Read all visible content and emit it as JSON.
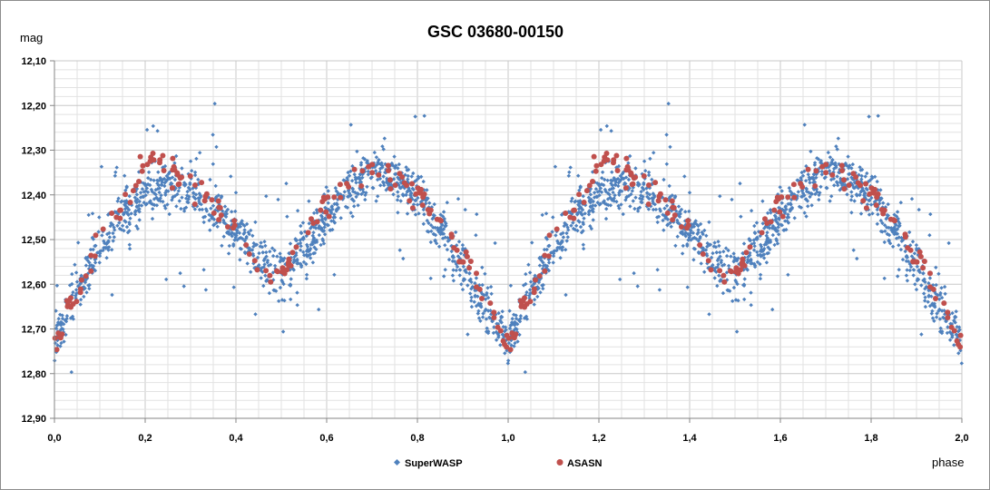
{
  "chart_data": {
    "type": "scatter",
    "title": "GSC 03680-00150",
    "ylabel": "mag",
    "xlabel": "phase",
    "xlim": [
      0.0,
      2.0
    ],
    "ylim": [
      12.1,
      12.9
    ],
    "y_inverted": true,
    "x_ticks": [
      "0,0",
      "0,2",
      "0,4",
      "0,6",
      "0,8",
      "1,0",
      "1,2",
      "1,4",
      "1,6",
      "1,8",
      "2,0"
    ],
    "y_ticks": [
      "12,10",
      "12,20",
      "12,30",
      "12,40",
      "12,50",
      "12,60",
      "12,70",
      "12,80",
      "12,90"
    ],
    "grid": true,
    "legend_position": "bottom",
    "series": [
      {
        "name": "SuperWASP",
        "color": "#4f81bd",
        "marker": "diamond",
        "mean_curve": {
          "phase": [
            0.0,
            0.05,
            0.1,
            0.15,
            0.2,
            0.25,
            0.3,
            0.35,
            0.4,
            0.45,
            0.5,
            0.55,
            0.6,
            0.65,
            0.7,
            0.75,
            0.8,
            0.85,
            0.9,
            0.95,
            1.0
          ],
          "mag": [
            12.72,
            12.62,
            12.52,
            12.45,
            12.4,
            12.38,
            12.4,
            12.43,
            12.48,
            12.54,
            12.58,
            12.52,
            12.45,
            12.39,
            12.35,
            12.36,
            12.4,
            12.48,
            12.57,
            12.66,
            12.72
          ]
        },
        "scatter_amplitude": 0.05,
        "points_per_cycle": 1300
      },
      {
        "name": "ASASN",
        "color": "#c0504d",
        "marker": "circle",
        "mean_curve": {
          "phase": [
            0.0,
            0.05,
            0.1,
            0.15,
            0.2,
            0.23,
            0.25,
            0.3,
            0.35,
            0.4,
            0.45,
            0.5,
            0.55,
            0.6,
            0.65,
            0.7,
            0.75,
            0.8,
            0.85,
            0.9,
            0.95,
            1.0
          ],
          "mag": [
            12.73,
            12.63,
            12.5,
            12.42,
            12.35,
            12.32,
            12.34,
            12.38,
            12.41,
            12.47,
            12.55,
            12.58,
            12.49,
            12.42,
            12.37,
            12.34,
            12.36,
            12.4,
            12.46,
            12.54,
            12.64,
            12.73
          ]
        },
        "scatter_amplitude": 0.015,
        "points_per_cycle": 170
      }
    ]
  }
}
